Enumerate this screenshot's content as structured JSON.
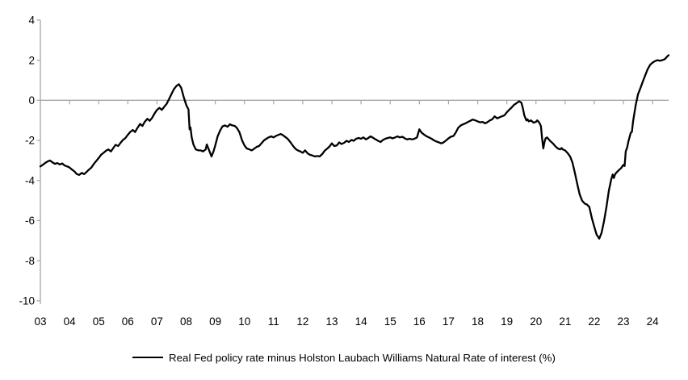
{
  "page": {
    "background": "#ffffff"
  },
  "chart_data": {
    "type": "line",
    "title": "",
    "xlabel": "",
    "ylabel": "",
    "x_start": 2003,
    "xlim": [
      2003,
      2024.55
    ],
    "ylim": [
      -10,
      4
    ],
    "grid": false,
    "zero_line": true,
    "legend_position": "bottom",
    "axis_color": "#a6a6a6",
    "text_color": "#000000",
    "tick_font_size": 13.5,
    "ytick_values": [
      4,
      2,
      0,
      -2,
      -4,
      -6,
      -8,
      -10
    ],
    "ytick_labels": [
      "4",
      "2",
      "0",
      "-2",
      "-4",
      "-6",
      "-8",
      "-10"
    ],
    "xtick_values": [
      2003,
      2004,
      2005,
      2006,
      2007,
      2008,
      2009,
      2010,
      2011,
      2012,
      2013,
      2014,
      2015,
      2016,
      2017,
      2018,
      2019,
      2020,
      2021,
      2022,
      2023,
      2024
    ],
    "xtick_labels": [
      "03",
      "04",
      "05",
      "06",
      "07",
      "08",
      "09",
      "10",
      "11",
      "12",
      "13",
      "14",
      "15",
      "16",
      "17",
      "18",
      "19",
      "20",
      "21",
      "22",
      "23",
      "24"
    ],
    "series": [
      {
        "name": "Real Fed policy rate minus Holston Laubach Williams Natural Rate of interest (%)",
        "color": "#000000",
        "line_width": 2.3,
        "points": [
          [
            2003.0,
            -3.3
          ],
          [
            2003.08,
            -3.22
          ],
          [
            2003.17,
            -3.12
          ],
          [
            2003.25,
            -3.05
          ],
          [
            2003.33,
            -3.0
          ],
          [
            2003.42,
            -3.1
          ],
          [
            2003.5,
            -3.17
          ],
          [
            2003.58,
            -3.13
          ],
          [
            2003.67,
            -3.2
          ],
          [
            2003.75,
            -3.15
          ],
          [
            2003.83,
            -3.25
          ],
          [
            2003.92,
            -3.3
          ],
          [
            2004.0,
            -3.35
          ],
          [
            2004.08,
            -3.45
          ],
          [
            2004.17,
            -3.55
          ],
          [
            2004.25,
            -3.68
          ],
          [
            2004.33,
            -3.72
          ],
          [
            2004.42,
            -3.62
          ],
          [
            2004.5,
            -3.68
          ],
          [
            2004.58,
            -3.58
          ],
          [
            2004.67,
            -3.45
          ],
          [
            2004.75,
            -3.35
          ],
          [
            2004.83,
            -3.18
          ],
          [
            2004.92,
            -3.02
          ],
          [
            2005.0,
            -2.88
          ],
          [
            2005.08,
            -2.72
          ],
          [
            2005.17,
            -2.62
          ],
          [
            2005.25,
            -2.52
          ],
          [
            2005.33,
            -2.45
          ],
          [
            2005.42,
            -2.55
          ],
          [
            2005.5,
            -2.38
          ],
          [
            2005.58,
            -2.22
          ],
          [
            2005.67,
            -2.28
          ],
          [
            2005.75,
            -2.12
          ],
          [
            2005.83,
            -1.98
          ],
          [
            2005.92,
            -1.88
          ],
          [
            2006.0,
            -1.72
          ],
          [
            2006.08,
            -1.58
          ],
          [
            2006.17,
            -1.48
          ],
          [
            2006.25,
            -1.58
          ],
          [
            2006.33,
            -1.38
          ],
          [
            2006.42,
            -1.18
          ],
          [
            2006.5,
            -1.28
          ],
          [
            2006.58,
            -1.08
          ],
          [
            2006.67,
            -0.92
          ],
          [
            2006.75,
            -1.02
          ],
          [
            2006.83,
            -0.88
          ],
          [
            2006.92,
            -0.65
          ],
          [
            2007.0,
            -0.48
          ],
          [
            2007.08,
            -0.38
          ],
          [
            2007.17,
            -0.48
          ],
          [
            2007.25,
            -0.32
          ],
          [
            2007.33,
            -0.18
          ],
          [
            2007.42,
            0.08
          ],
          [
            2007.5,
            0.32
          ],
          [
            2007.58,
            0.55
          ],
          [
            2007.67,
            0.72
          ],
          [
            2007.75,
            0.8
          ],
          [
            2007.83,
            0.62
          ],
          [
            2007.92,
            0.15
          ],
          [
            2008.0,
            -0.22
          ],
          [
            2008.04,
            -0.35
          ],
          [
            2008.08,
            -0.45
          ],
          [
            2008.12,
            -1.45
          ],
          [
            2008.15,
            -1.35
          ],
          [
            2008.19,
            -1.85
          ],
          [
            2008.25,
            -2.2
          ],
          [
            2008.33,
            -2.45
          ],
          [
            2008.42,
            -2.5
          ],
          [
            2008.5,
            -2.5
          ],
          [
            2008.58,
            -2.55
          ],
          [
            2008.67,
            -2.45
          ],
          [
            2008.71,
            -2.2
          ],
          [
            2008.79,
            -2.5
          ],
          [
            2008.87,
            -2.8
          ],
          [
            2008.94,
            -2.55
          ],
          [
            2009.0,
            -2.25
          ],
          [
            2009.08,
            -1.8
          ],
          [
            2009.17,
            -1.5
          ],
          [
            2009.25,
            -1.3
          ],
          [
            2009.33,
            -1.25
          ],
          [
            2009.42,
            -1.32
          ],
          [
            2009.5,
            -1.2
          ],
          [
            2009.58,
            -1.25
          ],
          [
            2009.67,
            -1.28
          ],
          [
            2009.75,
            -1.4
          ],
          [
            2009.83,
            -1.6
          ],
          [
            2009.92,
            -2.0
          ],
          [
            2010.0,
            -2.25
          ],
          [
            2010.08,
            -2.4
          ],
          [
            2010.17,
            -2.45
          ],
          [
            2010.25,
            -2.5
          ],
          [
            2010.33,
            -2.42
          ],
          [
            2010.42,
            -2.32
          ],
          [
            2010.5,
            -2.28
          ],
          [
            2010.58,
            -2.15
          ],
          [
            2010.67,
            -2.0
          ],
          [
            2010.75,
            -1.92
          ],
          [
            2010.83,
            -1.85
          ],
          [
            2010.92,
            -1.8
          ],
          [
            2011.0,
            -1.85
          ],
          [
            2011.08,
            -1.78
          ],
          [
            2011.17,
            -1.72
          ],
          [
            2011.25,
            -1.68
          ],
          [
            2011.33,
            -1.75
          ],
          [
            2011.42,
            -1.85
          ],
          [
            2011.5,
            -1.95
          ],
          [
            2011.58,
            -2.1
          ],
          [
            2011.67,
            -2.28
          ],
          [
            2011.75,
            -2.42
          ],
          [
            2011.83,
            -2.5
          ],
          [
            2011.92,
            -2.55
          ],
          [
            2012.0,
            -2.62
          ],
          [
            2012.08,
            -2.5
          ],
          [
            2012.17,
            -2.65
          ],
          [
            2012.25,
            -2.72
          ],
          [
            2012.33,
            -2.75
          ],
          [
            2012.42,
            -2.8
          ],
          [
            2012.5,
            -2.78
          ],
          [
            2012.58,
            -2.8
          ],
          [
            2012.67,
            -2.68
          ],
          [
            2012.75,
            -2.52
          ],
          [
            2012.83,
            -2.42
          ],
          [
            2012.92,
            -2.3
          ],
          [
            2013.0,
            -2.15
          ],
          [
            2013.08,
            -2.28
          ],
          [
            2013.17,
            -2.25
          ],
          [
            2013.25,
            -2.1
          ],
          [
            2013.33,
            -2.18
          ],
          [
            2013.42,
            -2.12
          ],
          [
            2013.5,
            -2.02
          ],
          [
            2013.58,
            -2.08
          ],
          [
            2013.67,
            -1.98
          ],
          [
            2013.75,
            -2.02
          ],
          [
            2013.83,
            -1.92
          ],
          [
            2013.92,
            -1.88
          ],
          [
            2014.0,
            -1.92
          ],
          [
            2014.08,
            -1.85
          ],
          [
            2014.17,
            -1.95
          ],
          [
            2014.25,
            -1.88
          ],
          [
            2014.33,
            -1.8
          ],
          [
            2014.42,
            -1.88
          ],
          [
            2014.5,
            -1.95
          ],
          [
            2014.58,
            -2.02
          ],
          [
            2014.67,
            -2.08
          ],
          [
            2014.75,
            -1.98
          ],
          [
            2014.83,
            -1.92
          ],
          [
            2014.92,
            -1.88
          ],
          [
            2015.0,
            -1.85
          ],
          [
            2015.08,
            -1.9
          ],
          [
            2015.17,
            -1.85
          ],
          [
            2015.25,
            -1.8
          ],
          [
            2015.33,
            -1.85
          ],
          [
            2015.42,
            -1.82
          ],
          [
            2015.5,
            -1.9
          ],
          [
            2015.58,
            -1.95
          ],
          [
            2015.67,
            -1.92
          ],
          [
            2015.75,
            -1.95
          ],
          [
            2015.83,
            -1.92
          ],
          [
            2015.92,
            -1.85
          ],
          [
            2016.0,
            -1.45
          ],
          [
            2016.08,
            -1.62
          ],
          [
            2016.17,
            -1.72
          ],
          [
            2016.25,
            -1.8
          ],
          [
            2016.33,
            -1.85
          ],
          [
            2016.42,
            -1.92
          ],
          [
            2016.5,
            -2.0
          ],
          [
            2016.58,
            -2.05
          ],
          [
            2016.67,
            -2.1
          ],
          [
            2016.75,
            -2.15
          ],
          [
            2016.83,
            -2.1
          ],
          [
            2016.92,
            -2.0
          ],
          [
            2017.0,
            -1.9
          ],
          [
            2017.08,
            -1.82
          ],
          [
            2017.17,
            -1.78
          ],
          [
            2017.25,
            -1.6
          ],
          [
            2017.33,
            -1.38
          ],
          [
            2017.42,
            -1.25
          ],
          [
            2017.5,
            -1.2
          ],
          [
            2017.58,
            -1.15
          ],
          [
            2017.67,
            -1.08
          ],
          [
            2017.75,
            -1.02
          ],
          [
            2017.83,
            -0.96
          ],
          [
            2017.92,
            -1.0
          ],
          [
            2018.0,
            -1.05
          ],
          [
            2018.08,
            -1.1
          ],
          [
            2018.17,
            -1.08
          ],
          [
            2018.25,
            -1.15
          ],
          [
            2018.33,
            -1.1
          ],
          [
            2018.42,
            -1.0
          ],
          [
            2018.5,
            -0.95
          ],
          [
            2018.58,
            -0.8
          ],
          [
            2018.67,
            -0.9
          ],
          [
            2018.75,
            -0.85
          ],
          [
            2018.83,
            -0.8
          ],
          [
            2018.92,
            -0.75
          ],
          [
            2019.0,
            -0.6
          ],
          [
            2019.08,
            -0.48
          ],
          [
            2019.17,
            -0.35
          ],
          [
            2019.25,
            -0.22
          ],
          [
            2019.33,
            -0.15
          ],
          [
            2019.42,
            -0.05
          ],
          [
            2019.5,
            -0.12
          ],
          [
            2019.55,
            -0.4
          ],
          [
            2019.6,
            -0.75
          ],
          [
            2019.67,
            -1.0
          ],
          [
            2019.71,
            -0.95
          ],
          [
            2019.75,
            -1.05
          ],
          [
            2019.83,
            -1.0
          ],
          [
            2019.92,
            -1.12
          ],
          [
            2020.0,
            -1.08
          ],
          [
            2020.04,
            -1.0
          ],
          [
            2020.08,
            -1.05
          ],
          [
            2020.13,
            -1.15
          ],
          [
            2020.17,
            -1.3
          ],
          [
            2020.21,
            -1.9
          ],
          [
            2020.25,
            -2.4
          ],
          [
            2020.29,
            -2.1
          ],
          [
            2020.33,
            -1.9
          ],
          [
            2020.38,
            -1.85
          ],
          [
            2020.42,
            -1.92
          ],
          [
            2020.5,
            -2.05
          ],
          [
            2020.58,
            -2.15
          ],
          [
            2020.67,
            -2.3
          ],
          [
            2020.75,
            -2.4
          ],
          [
            2020.83,
            -2.45
          ],
          [
            2020.88,
            -2.38
          ],
          [
            2020.92,
            -2.45
          ],
          [
            2021.0,
            -2.5
          ],
          [
            2021.08,
            -2.62
          ],
          [
            2021.17,
            -2.8
          ],
          [
            2021.25,
            -3.1
          ],
          [
            2021.33,
            -3.6
          ],
          [
            2021.42,
            -4.2
          ],
          [
            2021.5,
            -4.7
          ],
          [
            2021.58,
            -5.0
          ],
          [
            2021.67,
            -5.15
          ],
          [
            2021.75,
            -5.2
          ],
          [
            2021.83,
            -5.32
          ],
          [
            2021.92,
            -5.9
          ],
          [
            2022.0,
            -6.3
          ],
          [
            2022.08,
            -6.7
          ],
          [
            2022.17,
            -6.9
          ],
          [
            2022.25,
            -6.6
          ],
          [
            2022.33,
            -6.05
          ],
          [
            2022.42,
            -5.3
          ],
          [
            2022.5,
            -4.5
          ],
          [
            2022.58,
            -3.95
          ],
          [
            2022.63,
            -3.7
          ],
          [
            2022.67,
            -3.88
          ],
          [
            2022.71,
            -3.7
          ],
          [
            2022.75,
            -3.62
          ],
          [
            2022.83,
            -3.5
          ],
          [
            2022.92,
            -3.38
          ],
          [
            2023.0,
            -3.22
          ],
          [
            2023.04,
            -3.28
          ],
          [
            2023.08,
            -2.55
          ],
          [
            2023.13,
            -2.35
          ],
          [
            2023.17,
            -2.05
          ],
          [
            2023.25,
            -1.62
          ],
          [
            2023.29,
            -1.58
          ],
          [
            2023.33,
            -1.05
          ],
          [
            2023.42,
            -0.25
          ],
          [
            2023.5,
            0.3
          ],
          [
            2023.58,
            0.6
          ],
          [
            2023.67,
            0.95
          ],
          [
            2023.75,
            1.25
          ],
          [
            2023.83,
            1.55
          ],
          [
            2023.92,
            1.78
          ],
          [
            2024.0,
            1.88
          ],
          [
            2024.08,
            1.95
          ],
          [
            2024.17,
            2.0
          ],
          [
            2024.25,
            1.97
          ],
          [
            2024.33,
            2.0
          ],
          [
            2024.42,
            2.05
          ],
          [
            2024.5,
            2.18
          ],
          [
            2024.55,
            2.25
          ]
        ]
      }
    ]
  },
  "legend": {
    "label": "Real Fed policy rate minus Holston Laubach Williams Natural Rate of interest (%)"
  }
}
